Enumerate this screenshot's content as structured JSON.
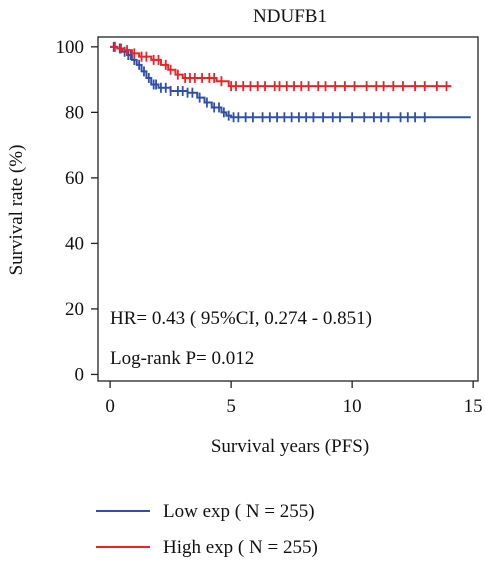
{
  "chart_data": {
    "type": "line",
    "title": "NDUFB1",
    "xlabel": "Survival years (PFS)",
    "ylabel": "Survival rate (%)",
    "xlim": [
      -0.5,
      15.2
    ],
    "ylim": [
      -2,
      103
    ],
    "xticks": [
      0,
      5,
      10,
      15
    ],
    "yticks": [
      0,
      20,
      40,
      60,
      80,
      100
    ],
    "annotations": {
      "hr": "HR= 0.43 ( 95%CI, 0.274 - 0.851)",
      "logrank": "Log-rank P= 0.012"
    },
    "series": [
      {
        "name": "Low exp ( N = 255)",
        "color": "#2f4fa8",
        "steps": [
          [
            0,
            100
          ],
          [
            0.3,
            99.5
          ],
          [
            0.5,
            98.5
          ],
          [
            0.7,
            97.5
          ],
          [
            0.9,
            96
          ],
          [
            1.1,
            94.5
          ],
          [
            1.3,
            92.5
          ],
          [
            1.5,
            90.5
          ],
          [
            1.7,
            88.5
          ],
          [
            2.0,
            87.5
          ],
          [
            2.5,
            86.5
          ],
          [
            3.2,
            86
          ],
          [
            3.6,
            84.5
          ],
          [
            3.9,
            83
          ],
          [
            4.2,
            81.5
          ],
          [
            4.6,
            80
          ],
          [
            4.8,
            79
          ],
          [
            5.0,
            78.5
          ],
          [
            14.9,
            78.5
          ]
        ],
        "censors": [
          0.15,
          0.4,
          0.6,
          0.75,
          0.85,
          1.0,
          1.2,
          1.4,
          1.6,
          1.8,
          1.9,
          2.1,
          2.3,
          2.5,
          2.8,
          3.0,
          3.2,
          3.4,
          3.7,
          4.0,
          4.3,
          4.5,
          4.7,
          4.9,
          5.1,
          5.3,
          5.6,
          5.9,
          6.3,
          6.6,
          6.9,
          7.2,
          7.5,
          7.8,
          8.1,
          8.4,
          8.8,
          9.2,
          9.5,
          10.0,
          10.5,
          10.9,
          11.2,
          11.5,
          12.0,
          12.3,
          12.6,
          13.0
        ]
      },
      {
        "name": "High exp ( N = 255)",
        "color": "#e8232a",
        "steps": [
          [
            0,
            100
          ],
          [
            0.3,
            99.5
          ],
          [
            0.6,
            99
          ],
          [
            0.9,
            98
          ],
          [
            1.2,
            97
          ],
          [
            1.7,
            96
          ],
          [
            2.1,
            94.5
          ],
          [
            2.4,
            93
          ],
          [
            2.7,
            91.5
          ],
          [
            3.0,
            90.5
          ],
          [
            4.4,
            89.5
          ],
          [
            4.9,
            88
          ],
          [
            14.1,
            88
          ]
        ],
        "censors": [
          0.2,
          0.45,
          0.7,
          1.0,
          1.3,
          1.5,
          1.8,
          2.0,
          2.3,
          2.5,
          2.8,
          3.1,
          3.3,
          3.5,
          3.8,
          4.1,
          4.3,
          4.6,
          5.0,
          5.2,
          5.5,
          5.8,
          6.1,
          6.4,
          6.8,
          7.0,
          7.3,
          7.6,
          7.9,
          8.2,
          8.6,
          8.9,
          9.3,
          9.7,
          10.1,
          10.6,
          11.0,
          11.3,
          11.7,
          12.1,
          12.6,
          13.0,
          13.5,
          13.9
        ]
      }
    ],
    "legend": "bottom-left"
  }
}
